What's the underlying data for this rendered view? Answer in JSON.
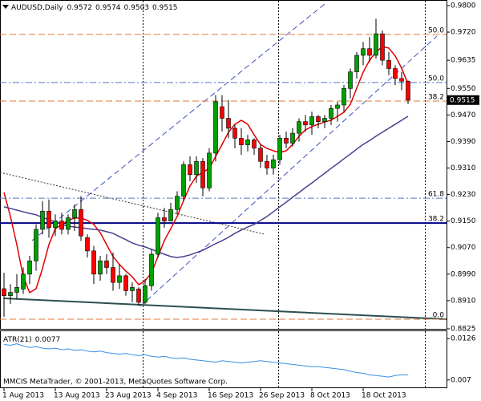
{
  "chart_data": [
    {
      "type": "candlestick",
      "title": "AUDUSD,Daily",
      "categories": [
        "1 Aug 2013",
        null,
        null,
        null,
        null,
        null,
        null,
        null,
        "13 Aug 2013",
        null,
        null,
        null,
        null,
        null,
        null,
        null,
        "23 Aug 2013",
        null,
        null,
        null,
        null,
        null,
        null,
        null,
        "4 Sep 2013",
        null,
        null,
        null,
        null,
        null,
        null,
        null,
        "16 Sep 2013",
        null,
        null,
        null,
        null,
        null,
        null,
        null,
        "26 Sep 2013",
        null,
        null,
        null,
        null,
        null,
        null,
        null,
        "8 Oct 2013",
        null,
        null,
        null,
        null,
        null,
        null,
        null,
        "18 Oct 2013",
        null,
        null,
        null,
        null,
        null,
        null,
        null
      ],
      "open": [
        0.8946,
        0.8925,
        0.8935,
        0.8945,
        0.899,
        0.903,
        0.9125,
        0.918,
        0.913,
        0.915,
        0.9125,
        0.916,
        0.9185,
        0.91,
        0.906,
        0.899,
        0.903,
        0.901,
        0.8965,
        0.8985,
        0.894,
        0.8945,
        0.8905,
        0.8955,
        0.905,
        0.916,
        0.915,
        0.9185,
        0.9225,
        0.932,
        0.929,
        0.933,
        0.925,
        0.9355,
        0.9495,
        0.946,
        0.943,
        0.94,
        0.938,
        0.9395,
        0.937,
        0.933,
        0.931,
        0.9335,
        0.94,
        0.9385,
        0.9415,
        0.945,
        0.944,
        0.9465,
        0.945,
        0.946,
        0.949,
        0.95,
        0.955,
        0.96,
        0.965,
        0.967,
        0.965,
        0.9715,
        0.9635,
        0.961,
        0.958,
        0.9572
      ],
      "high": [
        0.8994,
        0.896,
        0.899,
        0.901,
        0.9045,
        0.914,
        0.921,
        0.9215,
        0.917,
        0.9175,
        0.917,
        0.92,
        0.9225,
        0.911,
        0.9075,
        0.9045,
        0.905,
        0.9055,
        0.902,
        0.899,
        0.8965,
        0.895,
        0.8975,
        0.9065,
        0.9175,
        0.919,
        0.9205,
        0.924,
        0.933,
        0.9345,
        0.9345,
        0.934,
        0.937,
        0.953,
        0.953,
        0.9515,
        0.944,
        0.943,
        0.941,
        0.94,
        0.938,
        0.935,
        0.935,
        0.941,
        0.942,
        0.943,
        0.946,
        0.947,
        0.948,
        0.947,
        0.947,
        0.95,
        0.951,
        0.956,
        0.961,
        0.966,
        0.969,
        0.9705,
        0.976,
        0.9725,
        0.966,
        0.962,
        0.96,
        0.9574
      ],
      "low": [
        0.8861,
        0.89,
        0.8915,
        0.893,
        0.896,
        0.9,
        0.911,
        0.91,
        0.9105,
        0.911,
        0.911,
        0.912,
        0.909,
        0.904,
        0.896,
        0.897,
        0.899,
        0.894,
        0.8945,
        0.8925,
        0.8905,
        0.8895,
        0.89,
        0.894,
        0.904,
        0.913,
        0.915,
        0.917,
        0.921,
        0.927,
        0.9265,
        0.9225,
        0.924,
        0.933,
        0.942,
        0.94,
        0.937,
        0.935,
        0.936,
        0.935,
        0.931,
        0.929,
        0.929,
        0.932,
        0.937,
        0.9375,
        0.939,
        0.942,
        0.941,
        0.943,
        0.943,
        0.944,
        0.945,
        0.948,
        0.952,
        0.958,
        0.962,
        0.963,
        0.964,
        0.962,
        0.959,
        0.956,
        0.9545,
        0.9503
      ],
      "close": [
        0.8925,
        0.8935,
        0.895,
        0.899,
        0.903,
        0.9125,
        0.918,
        0.913,
        0.915,
        0.9125,
        0.916,
        0.9185,
        0.9105,
        0.906,
        0.899,
        0.903,
        0.901,
        0.8965,
        0.8985,
        0.894,
        0.895,
        0.8905,
        0.8955,
        0.905,
        0.916,
        0.915,
        0.9185,
        0.9225,
        0.932,
        0.929,
        0.933,
        0.925,
        0.9355,
        0.951,
        0.946,
        0.943,
        0.94,
        0.938,
        0.9395,
        0.937,
        0.933,
        0.931,
        0.9335,
        0.94,
        0.9385,
        0.9415,
        0.945,
        0.944,
        0.9465,
        0.945,
        0.946,
        0.949,
        0.95,
        0.955,
        0.96,
        0.965,
        0.967,
        0.965,
        0.9715,
        0.9635,
        0.961,
        0.958,
        0.9572,
        0.9515
      ],
      "up_color": "#00a000",
      "down_color": "#ff0000",
      "series": [
        {
          "color": "#e00000",
          "values": [
            0.9236,
            0.9164,
            0.9079,
            0.8982,
            0.8934,
            0.8946,
            0.9007,
            0.9079,
            0.9127,
            0.914,
            0.9152,
            0.9159,
            0.9159,
            0.9152,
            0.914,
            0.9115,
            0.9079,
            0.9043,
            0.9019,
            0.8999,
            0.8982,
            0.8958,
            0.897,
            0.8994,
            0.9043,
            0.9091,
            0.9127,
            0.9164,
            0.9212,
            0.9256,
            0.9285,
            0.9297,
            0.9309,
            0.9345,
            0.9381,
            0.9418,
            0.9442,
            0.9454,
            0.9442,
            0.941,
            0.9381,
            0.9369,
            0.9362,
            0.9357,
            0.9362,
            0.9381,
            0.9406,
            0.9425,
            0.9435,
            0.9442,
            0.9449,
            0.9454,
            0.9466,
            0.9478,
            0.9502,
            0.9551,
            0.9599,
            0.9635,
            0.966,
            0.9676,
            0.9672,
            0.9648,
            0.9611,
            0.9563
          ]
        },
        {
          "color": "#4b3f8f",
          "values": [
            0.9193,
            0.9188,
            0.9183,
            0.9178,
            0.9173,
            0.9169,
            0.9161,
            0.9154,
            0.9147,
            0.914,
            0.9135,
            0.9132,
            0.913,
            0.9127,
            0.9125,
            0.9123,
            0.9118,
            0.9113,
            0.9103,
            0.9094,
            0.9084,
            0.9077,
            0.9072,
            0.9065,
            0.9057,
            0.905,
            0.9043,
            0.904,
            0.9043,
            0.9048,
            0.9055,
            0.9062,
            0.9072,
            0.9082,
            0.9091,
            0.9101,
            0.9113,
            0.9123,
            0.9132,
            0.914,
            0.9152,
            0.9164,
            0.9178,
            0.9193,
            0.9207,
            0.9222,
            0.9236,
            0.9251,
            0.9265,
            0.928,
            0.9294,
            0.9309,
            0.9323,
            0.9338,
            0.9352,
            0.9367,
            0.9381,
            0.9393,
            0.9406,
            0.9418,
            0.943,
            0.9442,
            0.9454,
            0.9466
          ]
        }
      ],
      "levels": [
        {
          "label": "50.0",
          "value": 0.9713,
          "color": "#e07b39",
          "style": "dashed"
        },
        {
          "label": "50.0",
          "value": 0.9568,
          "color": "#5a78c8",
          "style": "dashdot"
        },
        {
          "label": "38.2",
          "value": 0.9512,
          "color": "#e07b39",
          "style": "dashed"
        },
        {
          "label": "61.8",
          "value": 0.9219,
          "color": "#5a78c8",
          "style": "dashdot"
        },
        {
          "label": "38.2",
          "value": 0.9144,
          "color": "#00008b",
          "style": "solid"
        },
        {
          "label": "0.0",
          "value": 0.8854,
          "color": "#e07b39",
          "style": "dashed"
        }
      ],
      "ylim": [
        0.8825,
        0.9812
      ],
      "yticks": [
        {
          "value": 0.98,
          "label": "0.9800"
        },
        {
          "value": 0.972,
          "label": "0.9720"
        },
        0.9635,
        {
          "value": 0.955,
          "label": "0.9550"
        },
        {
          "value": 0.947,
          "label": "0.9470"
        },
        {
          "value": 0.939,
          "label": "0.9390"
        },
        {
          "value": 0.931,
          "label": "0.9310"
        },
        {
          "value": 0.923,
          "label": "0.9230"
        },
        {
          "value": 0.915,
          "label": "0.9150"
        },
        {
          "value": 0.907,
          "label": "0.9070"
        },
        {
          "value": 0.899,
          "label": "0.8990"
        },
        {
          "value": 0.891,
          "label": "0.8910"
        },
        0.8825
      ]
    },
    {
      "type": "line",
      "title": "ATR(21)",
      "color": "#3a8ee6",
      "values": [
        0.0118,
        0.0117,
        0.0119,
        0.0116,
        0.0114,
        0.0115,
        0.0113,
        0.0112,
        0.0113,
        0.0111,
        0.0112,
        0.011,
        0.0111,
        0.0109,
        0.0108,
        0.0109,
        0.0107,
        0.0106,
        0.0105,
        0.0106,
        0.0104,
        0.0103,
        0.0104,
        0.0102,
        0.0101,
        0.0102,
        0.01,
        0.0099,
        0.01,
        0.0098,
        0.0097,
        0.0096,
        0.0095,
        0.0094,
        0.0096,
        0.0095,
        0.0094,
        0.0093,
        0.0094,
        0.0095,
        0.0096,
        0.0095,
        0.0094,
        0.0093,
        0.0092,
        0.0091,
        0.009,
        0.0089,
        0.0088,
        0.0088,
        0.0087,
        0.0086,
        0.0085,
        0.0084,
        0.0082,
        0.008,
        0.0079,
        0.0077,
        0.0076,
        0.0075,
        0.0074,
        0.0076,
        0.0077,
        0.0077
      ],
      "ylim": [
        0.006,
        0.0137
      ],
      "yticks": [
        0.0126,
        0.007
      ]
    }
  ],
  "watermark": "MMCIS MetaTrader, © 2001-2013, MetaQuotes Software Corp."
}
